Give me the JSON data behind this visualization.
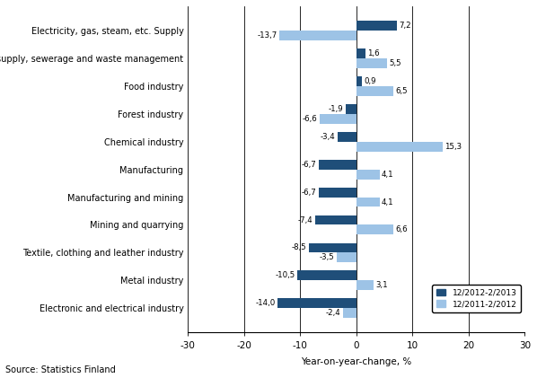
{
  "categories": [
    "Electronic and electrical industry",
    "Metal industry",
    "Textile, clothing and leather industry",
    "Mining and quarrying",
    "Manufacturing and mining",
    "Manufacturing",
    "Chemical industry",
    "Forest industry",
    "Food industry",
    "Water supply, sewerage and waste management",
    "Electricity, gas, steam, etc. Supply"
  ],
  "series_2013": [
    -14.0,
    -10.5,
    -8.5,
    -7.4,
    -6.7,
    -6.7,
    -3.4,
    -1.9,
    0.9,
    1.6,
    7.2
  ],
  "series_2012": [
    -2.4,
    3.1,
    -3.5,
    6.6,
    4.1,
    4.1,
    15.3,
    -6.6,
    6.5,
    5.5,
    -13.7
  ],
  "labels_2013": [
    "-14,0",
    "-10,5",
    "-8,5",
    "-7,4",
    "-6,7",
    "-6,7",
    "-3,4",
    "-1,9",
    "0,9",
    "1,6",
    "7,2"
  ],
  "labels_2012": [
    "-2,4",
    "3,1",
    "-3,5",
    "6,6",
    "4,1",
    "4,1",
    "15,3",
    "-6,6",
    "6,5",
    "5,5",
    "-13,7"
  ],
  "color_2013": "#1F4E79",
  "color_2012": "#9DC3E6",
  "xlim": [
    -30,
    30
  ],
  "xticks": [
    -30,
    -20,
    -10,
    0,
    10,
    20,
    30
  ],
  "xlabel": "Year-on-year-change, %",
  "legend_2013": "12/2012-2/2013",
  "legend_2012": "12/2011-2/2012",
  "source_text": "Source: Statistics Finland",
  "bar_height": 0.35,
  "background_color": "#FFFFFF"
}
